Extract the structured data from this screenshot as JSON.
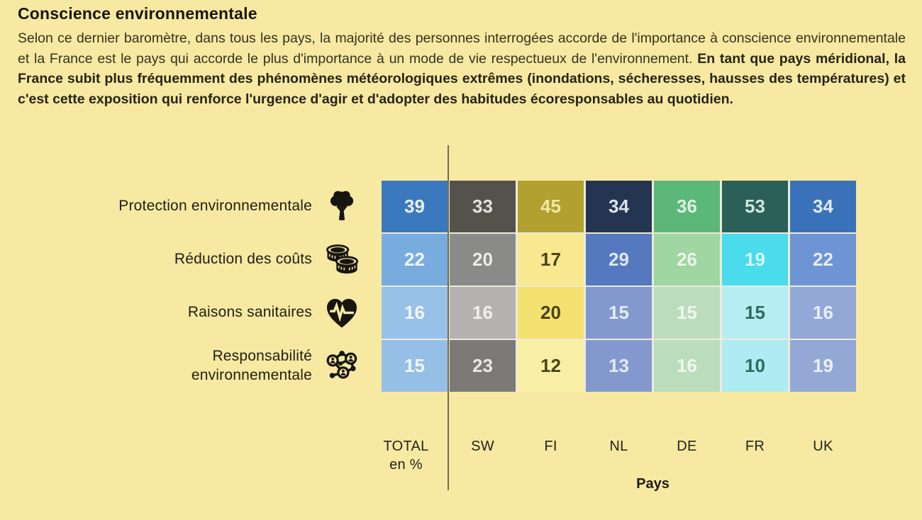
{
  "title": "Conscience environnementale",
  "paragraph": {
    "normal": "Selon ce dernier baromètre, dans tous les pays, la majorité des personnes interrogées accorde de l'importance à conscience environnementale et la France est le pays qui accorde le plus d'importance à un mode de vie respectueux de l'environnement. ",
    "bold": "En tant que pays méridional, la France subit plus fréquemment des phénomènes météorologiques extrêmes (inondations, sécheresses, hausses des températures) et c'est cette exposition qui renforce l'urgence d'agir et d'adopter des habitudes écoresponsables au quotidien."
  },
  "colors": {
    "background": "#f7e9a2",
    "separator_line": "#6f7049",
    "cell_gap": "#ecebdb"
  },
  "chart_data": {
    "type": "heatmap",
    "unit": "%",
    "xlabel": "Pays",
    "columns": [
      {
        "label": "TOTAL",
        "sub": "en %"
      },
      {
        "label": "SW"
      },
      {
        "label": "FI"
      },
      {
        "label": "NL"
      },
      {
        "label": "DE"
      },
      {
        "label": "FR"
      },
      {
        "label": "UK"
      }
    ],
    "rows": [
      {
        "label": "Protection environnementale",
        "icon": "tree-icon",
        "values": [
          39,
          33,
          45,
          34,
          36,
          53,
          34
        ]
      },
      {
        "label": "Réduction des coûts",
        "icon": "coins-icon",
        "values": [
          22,
          20,
          17,
          29,
          26,
          19,
          22
        ]
      },
      {
        "label": "Raisons sanitaires",
        "icon": "heart-pulse-icon",
        "values": [
          16,
          16,
          20,
          15,
          15,
          15,
          16
        ]
      },
      {
        "label": "Responsabilité\nenvironnementale",
        "icon": "network-people-icon",
        "values": [
          15,
          23,
          12,
          13,
          16,
          10,
          19
        ]
      }
    ],
    "cell_colors": [
      [
        "#3b79bf",
        "#55514b",
        "#b2a02f",
        "#243551",
        "#5cb878",
        "#2a6057",
        "#3a72ba"
      ],
      [
        "#78acdf",
        "#8a8a88",
        "#f8e88f",
        "#5579be",
        "#9fd6a1",
        "#4adced",
        "#6e95d3"
      ],
      [
        "#97c1e9",
        "#b4b3b1",
        "#f5e170",
        "#8399ce",
        "#bbddbb",
        "#b6edf3",
        "#94a8d6"
      ],
      [
        "#95bfe7",
        "#7c7a77",
        "#f9efa4",
        "#8399ce",
        "#bbddbb",
        "#aeebf2",
        "#94a8d6"
      ]
    ],
    "text_colors": [
      [
        "#e8eef6",
        "#e3e2e0",
        "#efe8a8",
        "#dfe3ee",
        "#ddf2e2",
        "#cfe7df",
        "#e2ebf7"
      ],
      [
        "#eef4fa",
        "#ececea",
        "#4a431a",
        "#dfe6f3",
        "#eaf6ea",
        "#d8f8fb",
        "#e6edf8"
      ],
      [
        "#f2f7fc",
        "#f0efed",
        "#4a431a",
        "#e4e9f5",
        "#eef7ee",
        "#2e6b60",
        "#e9eff9"
      ],
      [
        "#f2f7fc",
        "#e8e7e5",
        "#4a431a",
        "#e4e9f5",
        "#eef7ee",
        "#2e6b60",
        "#e9eff9"
      ]
    ]
  }
}
